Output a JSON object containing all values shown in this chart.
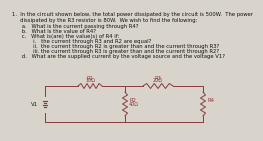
{
  "title_text": "1.  In the circuit shown below, the total power dissipated by the circuit is 500W.  The power",
  "title_line2": "     dissipated by the R3 resistor is 80W.  We wish to find the following:",
  "questions": [
    "      a.   What is the current passing through R4?",
    "      b.   What is the value of R4?",
    "      c.   What is(are) the value(s) of R4 if:",
    "             i.   the current through R3 and R2 are equal?",
    "             ii.  the current through R2 is greater than and the current through R3?",
    "             iii. the current through R3 is greater than and the current through R2?",
    "      d.   What are the supplied current by the voltage source and the voltage V1?"
  ],
  "R1_label": "R1",
  "R1_val": "10Ω",
  "R2_label": "R2",
  "R2_val": "40Ω",
  "R3_label": "R3",
  "R3_val": "20Ω",
  "R4_label": "R4",
  "V1_label": "V1",
  "bg_color": "#d8d4cc",
  "text_color": "#111111",
  "line_color": "#8b3a3a",
  "wire_color": "#8b3a3a",
  "font_size": 3.8,
  "circuit_line_color": "#8b3a3a"
}
